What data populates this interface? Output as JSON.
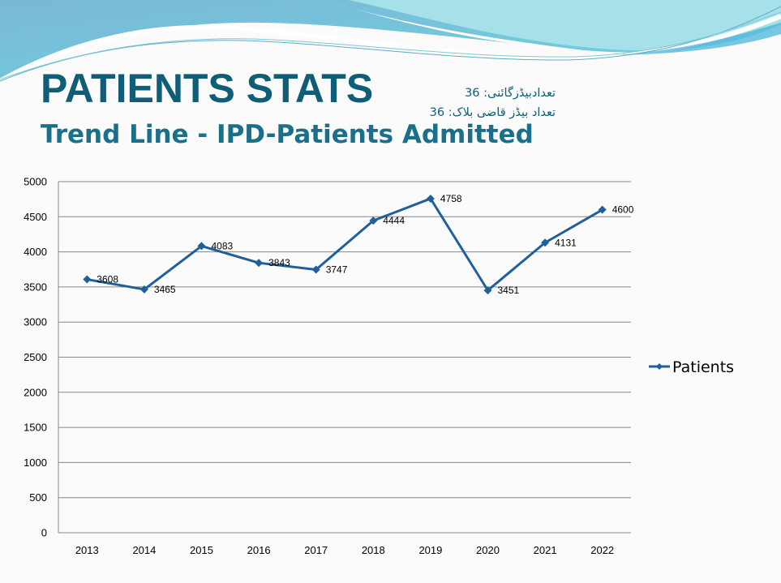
{
  "header": {
    "title": "PATIENTS STATS",
    "subtitle": "Trend Line -  IPD-Patients Admitted",
    "notes": [
      "تعدادبیڈزگائنی: 36",
      "تعداد بیڈز قاضی بلاک: 36"
    ]
  },
  "colors": {
    "series": "#1f5f9a",
    "title": "#0f5d76",
    "grid": "#888888"
  },
  "chart_data": {
    "type": "line",
    "title": "Trend Line -  IPD-Patients Admitted",
    "xlabel": "",
    "ylabel": "",
    "categories": [
      "2013",
      "2014",
      "2015",
      "2016",
      "2017",
      "2018",
      "2019",
      "2020",
      "2021",
      "2022"
    ],
    "series": [
      {
        "name": "Patients",
        "values": [
          3608,
          3465,
          4083,
          3843,
          3747,
          4444,
          4758,
          3451,
          4131,
          4600
        ]
      }
    ],
    "ylim": [
      0,
      5000
    ],
    "yticks": [
      0,
      500,
      1000,
      1500,
      2000,
      2500,
      3000,
      3500,
      4000,
      4500,
      5000
    ],
    "grid": true,
    "legend": "right",
    "marker": "diamond",
    "data_labels": true
  }
}
